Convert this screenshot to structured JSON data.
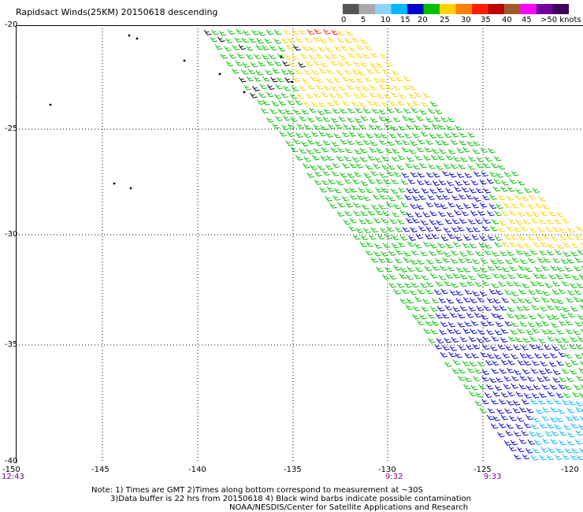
{
  "title": "Rapidsact Winds(25KM) 20150618 descending",
  "legend": {
    "labels": [
      "0",
      "5",
      "10",
      "15",
      "20",
      "25",
      "30",
      "35",
      "40",
      "45",
      ">50 knots"
    ],
    "colors": [
      "#555555",
      "#aaaaaa",
      "#8fd3ff",
      "#00b8ff",
      "#0000d0",
      "#00c000",
      "#ffd200",
      "#ff8000",
      "#ff2000",
      "#c00000",
      "#a05a2a",
      "#ff00ff",
      "#7000a0",
      "#400060"
    ]
  },
  "axes": {
    "lat_labels": [
      "-20",
      "-25",
      "-30",
      "-35",
      "-40"
    ],
    "lon_labels": [
      "-150",
      "-145",
      "-140",
      "-135",
      "-130",
      "-125",
      "-120"
    ]
  },
  "times": [
    "12:43",
    "9:32",
    "9:33"
  ],
  "notes": [
    "Note: 1) Times are GMT 2)Times along bottom correspond to measurement at ~30S",
    "3)Data buffer is 22 hrs from 20150618 4) Black wind barbs indicate possible contamination",
    "NOAA/NESDIS/Center for Satellite Applications and Research"
  ]
}
